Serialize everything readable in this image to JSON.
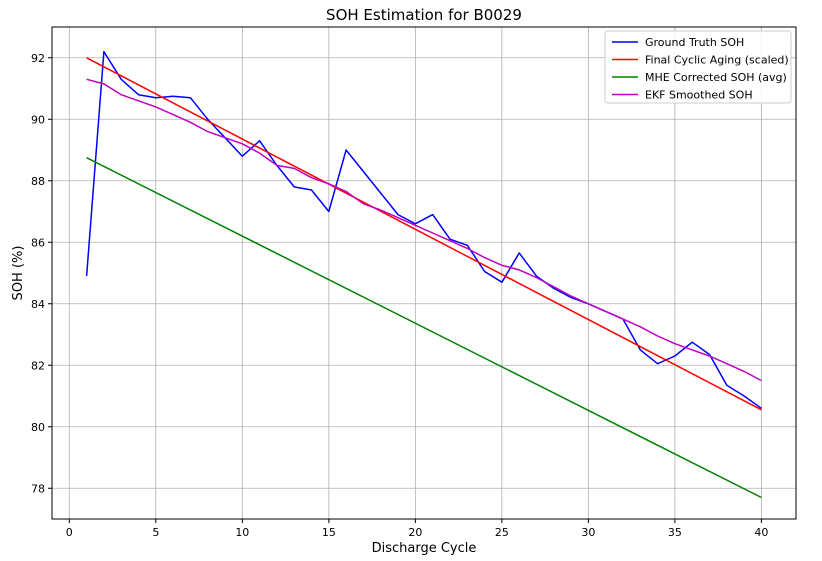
{
  "chart_data": {
    "type": "line",
    "title": "SOH Estimation for B0029",
    "xlabel": "Discharge Cycle",
    "ylabel": "SOH (%)",
    "xlim": [
      -1,
      42
    ],
    "ylim": [
      77,
      93
    ],
    "xticks": [
      0,
      5,
      10,
      15,
      20,
      25,
      30,
      35,
      40
    ],
    "yticks": [
      78,
      80,
      82,
      84,
      86,
      88,
      90,
      92
    ],
    "grid": true,
    "legend_position": "top-right",
    "series": [
      {
        "name": "Ground Truth SOH",
        "color": "#0000ff",
        "x": [
          1,
          2,
          3,
          4,
          5,
          6,
          7,
          8,
          9,
          10,
          11,
          12,
          13,
          14,
          15,
          16,
          17,
          18,
          19,
          20,
          21,
          22,
          23,
          24,
          25,
          26,
          27,
          28,
          29,
          30,
          31,
          32,
          33,
          34,
          35,
          36,
          37,
          38,
          39,
          40
        ],
        "y": [
          84.9,
          92.2,
          91.3,
          90.8,
          90.7,
          90.75,
          90.7,
          90.0,
          89.4,
          88.8,
          89.3,
          88.5,
          87.8,
          87.7,
          87.0,
          89.0,
          88.3,
          87.6,
          86.9,
          86.6,
          86.9,
          86.1,
          85.9,
          85.05,
          84.7,
          85.65,
          84.9,
          84.5,
          84.2,
          84.0,
          83.75,
          83.5,
          82.5,
          82.05,
          82.3,
          82.75,
          82.35,
          81.35,
          81.0,
          80.6
        ]
      },
      {
        "name": "Final Cyclic Aging (scaled)",
        "color": "#ff0000",
        "x": [
          1,
          40
        ],
        "y": [
          92.0,
          80.55
        ]
      },
      {
        "name": "MHE Corrected SOH (avg)",
        "color": "#008000",
        "x": [
          1,
          40
        ],
        "y": [
          88.75,
          77.7
        ]
      },
      {
        "name": "EKF Smoothed SOH",
        "color": "#bf00bf",
        "x": [
          1,
          2,
          3,
          4,
          5,
          6,
          7,
          8,
          9,
          10,
          11,
          12,
          13,
          14,
          15,
          16,
          17,
          18,
          19,
          20,
          21,
          22,
          23,
          24,
          25,
          26,
          27,
          28,
          29,
          30,
          31,
          32,
          33,
          34,
          35,
          36,
          37,
          38,
          39,
          40
        ],
        "y": [
          91.3,
          91.15,
          90.8,
          90.6,
          90.4,
          90.15,
          89.9,
          89.6,
          89.4,
          89.2,
          88.9,
          88.5,
          88.4,
          88.1,
          87.9,
          87.65,
          87.25,
          87.05,
          86.8,
          86.55,
          86.3,
          86.05,
          85.8,
          85.5,
          85.25,
          85.1,
          84.85,
          84.55,
          84.25,
          84.0,
          83.75,
          83.5,
          83.25,
          82.95,
          82.7,
          82.5,
          82.3,
          82.05,
          81.8,
          81.5
        ]
      }
    ]
  }
}
